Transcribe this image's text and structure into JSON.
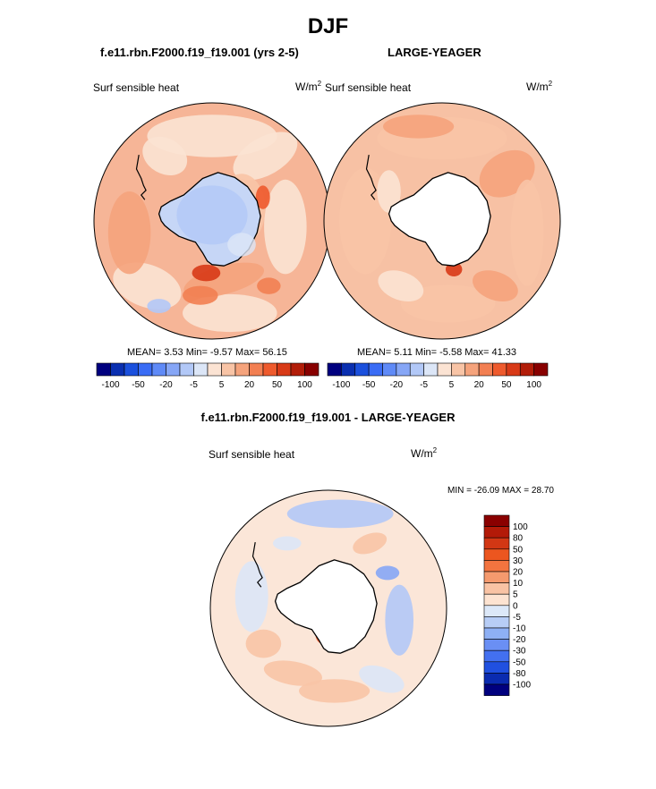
{
  "page": {
    "title": "DJF",
    "case_left": "f.e11.rbn.F2000.f19_f19.001 (yrs 2-5)",
    "case_right": "LARGE-YEAGER",
    "diff_title": "f.e11.rbn.F2000.f19_f19.001 - LARGE-YEAGER"
  },
  "panels": {
    "left": {
      "variable": "Surf sensible heat",
      "unit": "W/m",
      "unit_exp": "2",
      "stats": "MEAN=  3.53  Min=  -9.57  Max=  56.15"
    },
    "right": {
      "variable": "Surf sensible heat",
      "unit": "W/m",
      "unit_exp": "2",
      "stats": "MEAN=  5.11  Min=  -5.58  Max=  41.33"
    },
    "diff": {
      "variable": "Surf sensible heat",
      "unit": "W/m",
      "unit_exp": "2",
      "stats": "MIN = -26.09 MAX =  28.70"
    }
  },
  "colors": {
    "scale": [
      "#00007f",
      "#0a2fb0",
      "#1b50dd",
      "#3a6cf5",
      "#5f8af7",
      "#86a6f6",
      "#b2c8f7",
      "#dce6f7",
      "#fbe3d3",
      "#f8c4a6",
      "#f5a37c",
      "#f27f52",
      "#ee5a2d",
      "#d83a17",
      "#b21d09",
      "#880000"
    ],
    "land_left": "#c6d6f6",
    "land_right": "#ffffff",
    "ocean_base": "#f3a584"
  },
  "chart_data": [
    {
      "type": "heatmap",
      "title": "Surf sensible heat",
      "projection": "south-polar-stereographic",
      "units": "W/m2",
      "stats": {
        "mean": 3.53,
        "min": -9.57,
        "max": 56.15
      },
      "colorbar": {
        "orientation": "horizontal",
        "tick_labels": [
          "-100",
          "-50",
          "-20",
          "-5",
          "5",
          "20",
          "50",
          "100"
        ]
      }
    },
    {
      "type": "heatmap",
      "title": "Surf sensible heat",
      "projection": "south-polar-stereographic",
      "units": "W/m2",
      "stats": {
        "mean": 5.11,
        "min": -5.58,
        "max": 41.33
      },
      "colorbar": {
        "orientation": "horizontal",
        "tick_labels": [
          "-100",
          "-50",
          "-20",
          "-5",
          "5",
          "20",
          "50",
          "100"
        ]
      }
    },
    {
      "type": "heatmap",
      "title": "Surf sensible heat",
      "projection": "south-polar-stereographic",
      "units": "W/m2",
      "stats": {
        "min": -26.09,
        "max": 28.7
      },
      "colorbar": {
        "orientation": "vertical",
        "tick_labels": [
          "100",
          "80",
          "50",
          "30",
          "20",
          "10",
          "5",
          "0",
          "-5",
          "-10",
          "-20",
          "-30",
          "-50",
          "-80",
          "-100"
        ]
      }
    }
  ]
}
